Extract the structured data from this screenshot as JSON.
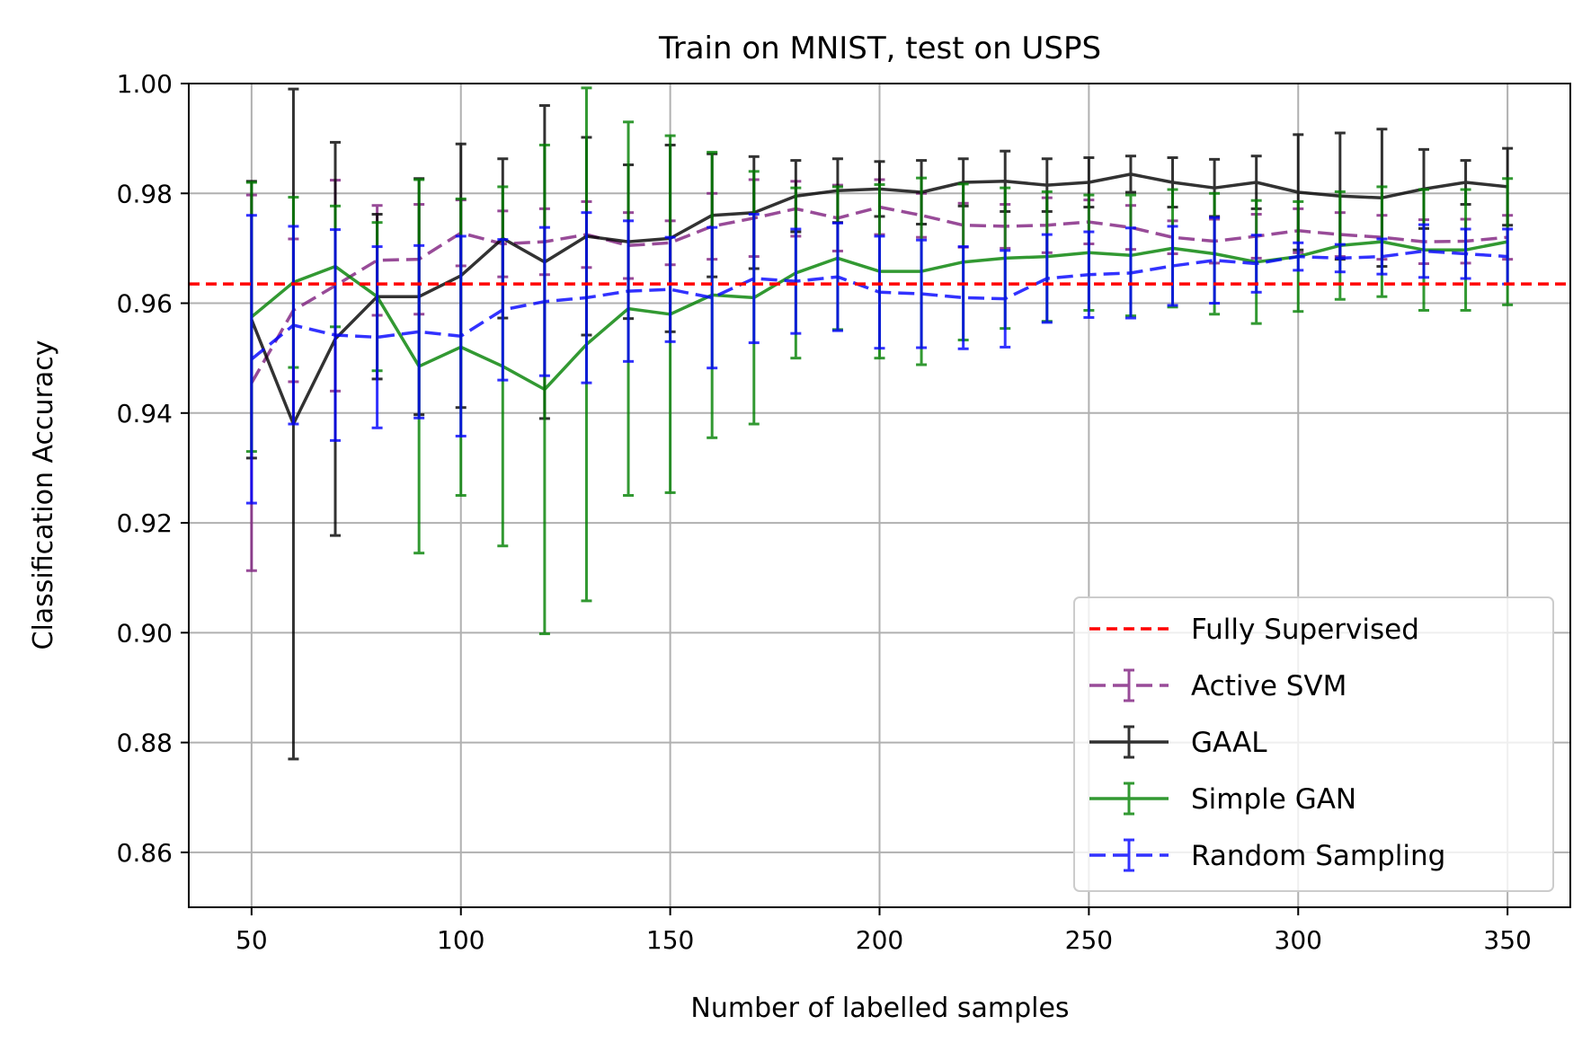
{
  "chart_data": {
    "type": "line",
    "title": "Train on MNIST, test on USPS",
    "xlabel": "Number of labelled samples",
    "ylabel": "Classification Accuracy",
    "xlim": [
      35,
      365
    ],
    "ylim": [
      0.85,
      1.0
    ],
    "xticks": [
      50,
      100,
      150,
      200,
      250,
      300,
      350
    ],
    "yticks": [
      0.86,
      0.88,
      0.9,
      0.92,
      0.94,
      0.96,
      0.98,
      1.0
    ],
    "xtick_labels": [
      "50",
      "100",
      "150",
      "200",
      "250",
      "300",
      "350"
    ],
    "ytick_labels": [
      "0.86",
      "0.88",
      "0.90",
      "0.92",
      "0.94",
      "0.96",
      "0.98",
      "1.00"
    ],
    "grid": true,
    "legend_position": "lower-right",
    "x": [
      50,
      60,
      70,
      80,
      90,
      100,
      110,
      120,
      130,
      140,
      150,
      160,
      170,
      180,
      190,
      200,
      210,
      220,
      230,
      240,
      250,
      260,
      270,
      280,
      290,
      300,
      310,
      320,
      330,
      340,
      350
    ],
    "reference_line": {
      "name": "Fully Supervised",
      "value": 0.9635,
      "color": "#ff0000",
      "style": "dashed"
    },
    "series": [
      {
        "name": "Active SVM",
        "color": "#7f1f7f",
        "style": "dashed",
        "values": [
          0.9455,
          0.9587,
          0.9632,
          0.9678,
          0.968,
          0.9728,
          0.9708,
          0.9712,
          0.9725,
          0.9705,
          0.971,
          0.974,
          0.9755,
          0.9772,
          0.9755,
          0.9775,
          0.976,
          0.9742,
          0.974,
          0.9742,
          0.9748,
          0.9738,
          0.972,
          0.9713,
          0.9722,
          0.9732,
          0.9725,
          0.972,
          0.9712,
          0.9713,
          0.972
        ],
        "errors": [
          0.0342,
          0.013,
          0.0192,
          0.01,
          0.01,
          0.006,
          0.006,
          0.006,
          0.006,
          0.006,
          0.004,
          0.006,
          0.007,
          0.005,
          0.006,
          0.005,
          0.004,
          0.004,
          0.004,
          0.005,
          0.004,
          0.004,
          0.003,
          0.004,
          0.004,
          0.004,
          0.004,
          0.004,
          0.004,
          0.004,
          0.004
        ]
      },
      {
        "name": "GAAL",
        "color": "#000000",
        "style": "solid",
        "values": [
          0.957,
          0.938,
          0.9535,
          0.9612,
          0.9612,
          0.965,
          0.9718,
          0.9675,
          0.9722,
          0.9712,
          0.9718,
          0.976,
          0.9765,
          0.9795,
          0.9805,
          0.9808,
          0.9802,
          0.982,
          0.9822,
          0.9815,
          0.982,
          0.9835,
          0.982,
          0.981,
          0.982,
          0.9802,
          0.9795,
          0.9792,
          0.9808,
          0.982,
          0.9812
        ],
        "errors": [
          0.0252,
          0.061,
          0.0358,
          0.015,
          0.0215,
          0.024,
          0.0145,
          0.0285,
          0.018,
          0.014,
          0.017,
          0.0112,
          0.0102,
          0.0065,
          0.0058,
          0.005,
          0.0058,
          0.0043,
          0.0055,
          0.0048,
          0.0045,
          0.0033,
          0.0045,
          0.0052,
          0.0048,
          0.0105,
          0.0115,
          0.0125,
          0.0072,
          0.004,
          0.007
        ]
      },
      {
        "name": "Simple GAN",
        "color": "#008000",
        "style": "solid",
        "values": [
          0.9575,
          0.9638,
          0.9667,
          0.9612,
          0.9485,
          0.952,
          0.9485,
          0.9443,
          0.9525,
          0.959,
          0.958,
          0.9615,
          0.961,
          0.9655,
          0.9682,
          0.9658,
          0.9658,
          0.9675,
          0.9682,
          0.9685,
          0.9692,
          0.9687,
          0.97,
          0.969,
          0.9675,
          0.9685,
          0.9705,
          0.9712,
          0.9697,
          0.9697,
          0.9712
        ],
        "errors": [
          0.0245,
          0.0155,
          0.011,
          0.0135,
          0.034,
          0.027,
          0.0327,
          0.0445,
          0.0467,
          0.034,
          0.0325,
          0.026,
          0.023,
          0.0155,
          0.013,
          0.0158,
          0.017,
          0.0142,
          0.0128,
          0.0118,
          0.0105,
          0.011,
          0.0107,
          0.011,
          0.0112,
          0.01,
          0.0098,
          0.01,
          0.011,
          0.011,
          0.0115
        ]
      },
      {
        "name": "Random Sampling",
        "color": "#0000ff",
        "style": "dashed",
        "values": [
          0.9498,
          0.956,
          0.9542,
          0.9538,
          0.9548,
          0.954,
          0.9588,
          0.9603,
          0.961,
          0.9622,
          0.9625,
          0.961,
          0.9645,
          0.964,
          0.9648,
          0.962,
          0.9617,
          0.961,
          0.9608,
          0.9645,
          0.9652,
          0.9655,
          0.9668,
          0.9678,
          0.9672,
          0.9685,
          0.9682,
          0.9685,
          0.9695,
          0.969,
          0.9685
        ],
        "errors": [
          0.0262,
          0.018,
          0.0192,
          0.0165,
          0.0157,
          0.0182,
          0.0128,
          0.0135,
          0.0155,
          0.0128,
          0.0095,
          0.0128,
          0.0117,
          0.0095,
          0.0098,
          0.0102,
          0.0098,
          0.0093,
          0.0088,
          0.008,
          0.0078,
          0.0082,
          0.0072,
          0.0078,
          0.0052,
          0.0025,
          0.0025,
          0.0032,
          0.0048,
          0.0045,
          0.005
        ]
      }
    ]
  }
}
